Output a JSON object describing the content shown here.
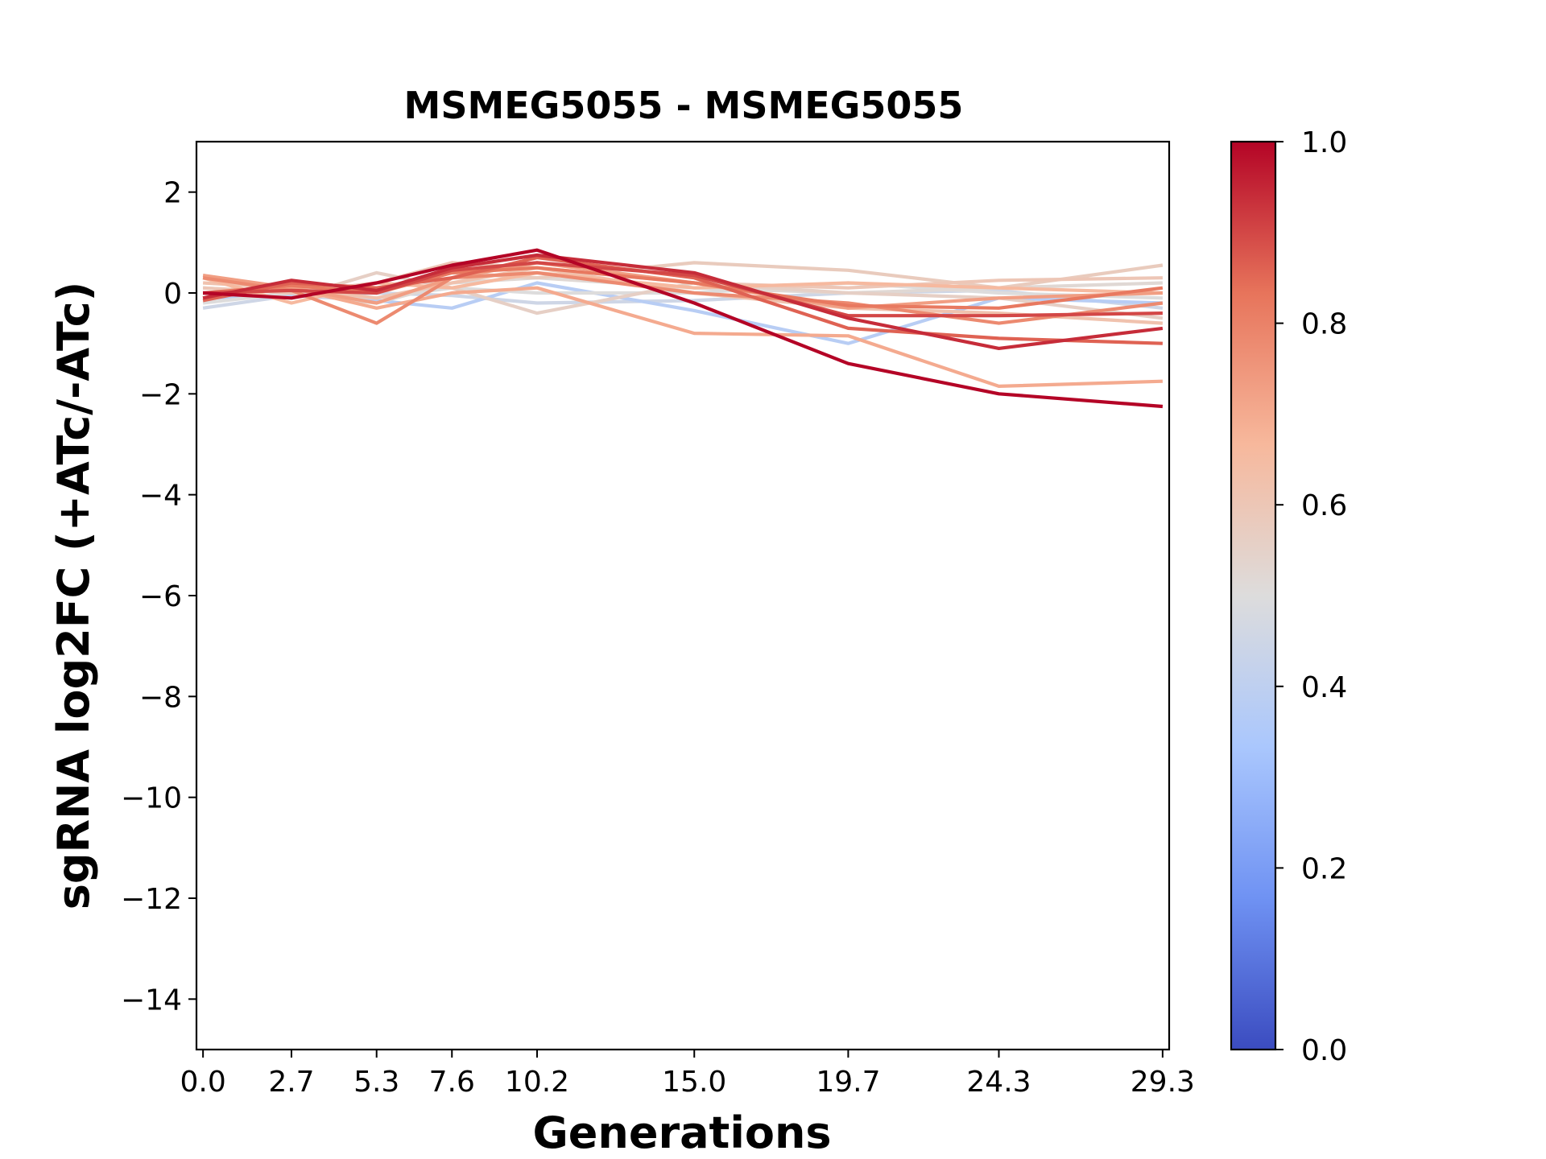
{
  "chart_data": {
    "type": "line",
    "title": "MSMEG5055 - MSMEG5055",
    "xlabel": "Generations",
    "ylabel": "sgRNA log2FC (+ATc/-ATc)",
    "x": [
      0.0,
      2.7,
      5.3,
      7.6,
      10.2,
      15.0,
      19.7,
      24.3,
      29.3
    ],
    "x_tick_labels": [
      "0.0",
      "2.7",
      "5.3",
      "7.6",
      "10.2",
      "15.0",
      "19.7",
      "24.3",
      "29.3"
    ],
    "xlim": [
      -0.2,
      29.5
    ],
    "ylim": [
      -15,
      3
    ],
    "y_ticks": [
      2,
      0,
      -2,
      -4,
      -6,
      -8,
      -10,
      -12,
      -14
    ],
    "y_tick_labels": [
      "2",
      "0",
      "−2",
      "−4",
      "−6",
      "−8",
      "−10",
      "−12",
      "−14"
    ],
    "grid": false,
    "colorbar": {
      "colormap": "coolwarm",
      "range": [
        0.0,
        1.0
      ],
      "ticks": [
        0.0,
        0.2,
        0.4,
        0.6,
        0.8,
        1.0
      ],
      "tick_labels": [
        "0.0",
        "0.2",
        "0.4",
        "0.6",
        "0.8",
        "1.0"
      ],
      "stops": [
        "#3b4cc0",
        "#6f92f3",
        "#aac7fd",
        "#dddcdc",
        "#f7b89c",
        "#e7745b",
        "#b40426"
      ]
    },
    "series": [
      {
        "color_value": 0.45,
        "values": [
          -0.3,
          -0.05,
          0.0,
          -0.05,
          -0.2,
          -0.15,
          0.0,
          0.05,
          -0.3
        ]
      },
      {
        "color_value": 0.38,
        "values": [
          -0.1,
          -0.05,
          -0.15,
          -0.3,
          0.2,
          -0.35,
          -1.0,
          -0.1,
          -0.2
        ]
      },
      {
        "color_value": 0.5,
        "values": [
          -0.2,
          0.0,
          -0.1,
          0.1,
          0.0,
          0.0,
          0.2,
          0.0,
          -0.1
        ]
      },
      {
        "color_value": 0.52,
        "values": [
          0.1,
          0.0,
          -0.2,
          0.2,
          0.3,
          0.1,
          0.0,
          0.1,
          0.2
        ]
      },
      {
        "color_value": 0.56,
        "values": [
          0.0,
          -0.1,
          0.4,
          0.1,
          -0.4,
          0.2,
          0.0,
          -0.1,
          -0.5
        ]
      },
      {
        "color_value": 0.58,
        "values": [
          -0.1,
          0.2,
          0.1,
          0.4,
          0.3,
          0.6,
          0.45,
          0.1,
          0.55
        ]
      },
      {
        "color_value": 0.6,
        "values": [
          0.1,
          0.0,
          0.2,
          0.6,
          0.5,
          0.2,
          0.1,
          0.25,
          0.3
        ]
      },
      {
        "color_value": 0.62,
        "values": [
          0.2,
          0.1,
          -0.1,
          0.2,
          0.5,
          0.0,
          -0.3,
          -0.4,
          -0.6
        ]
      },
      {
        "color_value": 0.66,
        "values": [
          0.3,
          -0.2,
          0.2,
          0.1,
          0.4,
          0.1,
          0.2,
          0.1,
          0.0
        ]
      },
      {
        "color_value": 0.7,
        "values": [
          -0.1,
          0.1,
          -0.3,
          0.0,
          0.1,
          -0.8,
          -0.85,
          -1.85,
          -1.75
        ]
      },
      {
        "color_value": 0.73,
        "values": [
          0.35,
          0.1,
          -0.2,
          0.3,
          0.6,
          0.2,
          -0.3,
          -0.1,
          0.0
        ]
      },
      {
        "color_value": 0.78,
        "values": [
          0.3,
          0.05,
          -0.6,
          0.3,
          0.4,
          0.0,
          -0.2,
          -0.6,
          -0.2
        ]
      },
      {
        "color_value": 0.82,
        "values": [
          0.0,
          0.15,
          0.0,
          0.4,
          0.5,
          0.2,
          -0.25,
          -0.3,
          0.1
        ]
      },
      {
        "color_value": 0.86,
        "values": [
          -0.15,
          0.2,
          0.1,
          0.3,
          0.7,
          0.3,
          -0.7,
          -0.9,
          -1.0
        ]
      },
      {
        "color_value": 0.9,
        "values": [
          0.0,
          0.05,
          0.0,
          0.45,
          0.6,
          0.35,
          -0.45,
          -0.45,
          -0.4
        ]
      },
      {
        "color_value": 0.94,
        "values": [
          -0.1,
          0.25,
          0.05,
          0.5,
          0.75,
          0.4,
          -0.5,
          -1.1,
          -0.7
        ]
      },
      {
        "color_value": 1.0,
        "values": [
          0.0,
          -0.1,
          0.2,
          0.55,
          0.85,
          -0.2,
          -1.4,
          -2.0,
          -2.25
        ]
      }
    ]
  }
}
